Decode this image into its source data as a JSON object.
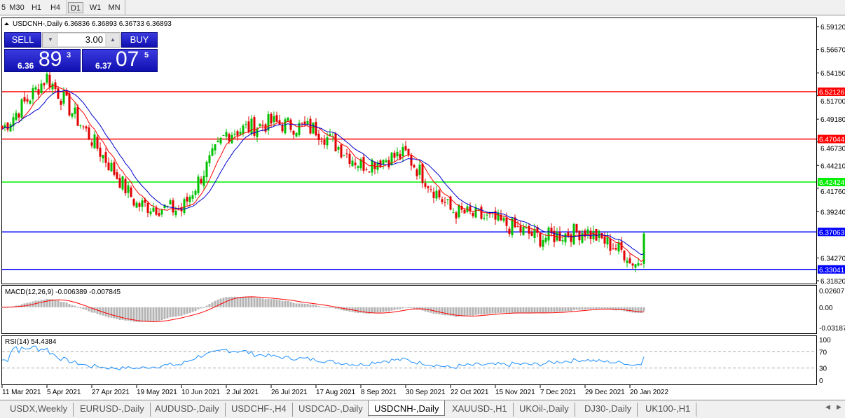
{
  "toolbar": {
    "timeframes": [
      "5",
      "M30",
      "H1",
      "H4",
      "D1",
      "W1",
      "MN"
    ],
    "active": "D1"
  },
  "chart": {
    "header": "USDCNH-,Daily  6.36836 6.36893 6.36733 6.36893"
  },
  "trade": {
    "sell_label": "SELL",
    "buy_label": "BUY",
    "lot": "3.00",
    "sell_prefix": "6.36",
    "sell_big": "89",
    "sell_sup": "3",
    "buy_prefix": "6.37",
    "buy_big": "07",
    "buy_sup": "5"
  },
  "price_axis": [
    "6.59120",
    "6.56670",
    "6.54150",
    "6.51700",
    "6.49180",
    "6.46730",
    "6.44210",
    "6.41760",
    "6.39240",
    "6.34270",
    "6.31820"
  ],
  "levels": [
    {
      "price": "6.52126",
      "color": "#ff0000"
    },
    {
      "price": "6.47044",
      "color": "#ff0000"
    },
    {
      "price": "6.42424",
      "color": "#00ee00"
    },
    {
      "price": "6.37063",
      "color": "#0000ff"
    },
    {
      "price": "6.33041",
      "color": "#0000ff"
    }
  ],
  "macd": {
    "label": "MACD(12,26,9) -0.006389 -0.007845",
    "axis": [
      "0.02607",
      "0.00",
      "-0.03187"
    ]
  },
  "rsi": {
    "label": "RSI(14) 54.4384",
    "axis": [
      "100",
      "70",
      "30",
      "0"
    ]
  },
  "chart_data": {
    "type": "candlestick",
    "symbol": "USDCNH-",
    "timeframe": "Daily",
    "ylim": [
      6.3182,
      6.5912
    ],
    "price_path": [
      {
        "date": "11 Mar 2021",
        "close": 6.481
      },
      {
        "date": "5 Apr 2021",
        "close": 6.537
      },
      {
        "date": "27 Apr 2021",
        "close": 6.47
      },
      {
        "date": "19 May 2021",
        "close": 6.4
      },
      {
        "date": "10 Jun 2021",
        "close": 6.394
      },
      {
        "date": "2 Jul 2021",
        "close": 6.477
      },
      {
        "date": "26 Jul 2021",
        "close": 6.488
      },
      {
        "date": "17 Aug 2021",
        "close": 6.481
      },
      {
        "date": "8 Sep 2021",
        "close": 6.443
      },
      {
        "date": "30 Sep 2021",
        "close": 6.454
      },
      {
        "date": "22 Oct 2021",
        "close": 6.394
      },
      {
        "date": "15 Nov 2021",
        "close": 6.383
      },
      {
        "date": "7 Dec 2021",
        "close": 6.364
      },
      {
        "date": "29 Dec 2021",
        "close": 6.372
      },
      {
        "date": "20 Jan 2022",
        "close": 6.345
      }
    ],
    "last": {
      "open": 6.36836,
      "high": 6.36893,
      "low": 6.36733,
      "close": 6.36893
    },
    "x_ticks": [
      "11 Mar 2021",
      "5 Apr 2021",
      "27 Apr 2021",
      "19 May 2021",
      "10 Jun 2021",
      "2 Jul 2021",
      "26 Jul 2021",
      "17 Aug 2021",
      "8 Sep 2021",
      "30 Sep 2021",
      "22 Oct 2021",
      "15 Nov 2021",
      "7 Dec 2021",
      "29 Dec 2021",
      "20 Jan 2022"
    ]
  },
  "tabs": [
    "USDX,Weekly",
    "EURUSD-,Daily",
    "AUDUSD-,Daily",
    "USDCHF-,H4",
    "USDCAD-,Daily",
    "USDCNH-,Daily",
    "XAUUSD-,H1",
    "UKOil-,Daily",
    "DJ30-,Daily",
    "UK100-,H1"
  ],
  "active_tab": "USDCNH-,Daily"
}
